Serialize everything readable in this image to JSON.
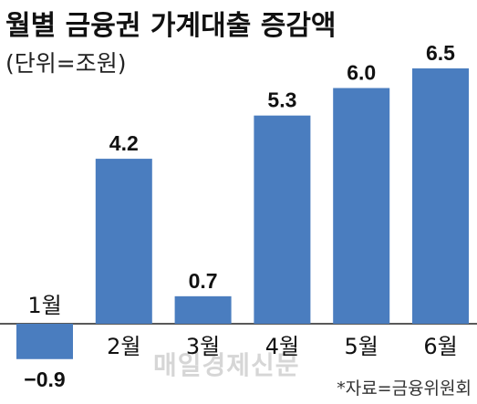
{
  "chart_data": {
    "type": "bar",
    "title": "월별 금융권 가계대출 증감액",
    "subtitle": "(단위=조원)",
    "categories": [
      "1월",
      "2월",
      "3월",
      "4월",
      "5월",
      "6월"
    ],
    "values": [
      -0.9,
      4.2,
      0.7,
      5.3,
      6.0,
      6.5
    ],
    "value_labels": [
      "−0.9",
      "4.2",
      "0.7",
      "5.3",
      "6.0",
      "6.5"
    ],
    "bar_color": "#4a7dbf",
    "source": "*자료=금융위원회",
    "watermark": "매일경제신문"
  }
}
